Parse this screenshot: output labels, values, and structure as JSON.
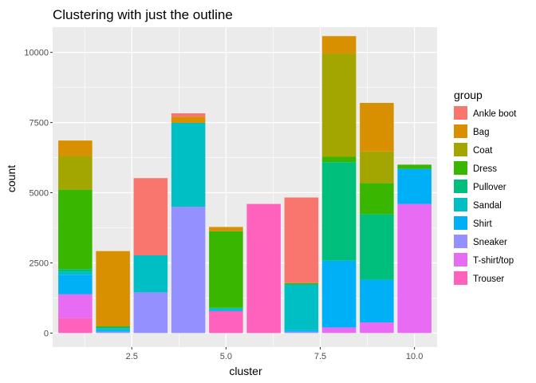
{
  "chart_data": {
    "type": "bar",
    "stacked": true,
    "title": "Clustering with just the outline",
    "xlabel": "cluster",
    "ylabel": "count",
    "xlim": [
      0.4,
      10.6
    ],
    "ylim": [
      -500,
      10900
    ],
    "x_ticks": [
      2.5,
      5.0,
      7.5,
      10.0
    ],
    "x_tick_labels": [
      "2.5",
      "5.0",
      "7.5",
      "10.0"
    ],
    "y_ticks": [
      0,
      2500,
      5000,
      7500,
      10000
    ],
    "y_tick_labels": [
      "0",
      "2500",
      "5000",
      "7500",
      "10000"
    ],
    "grid": true,
    "legend_position": "right",
    "legend_title": "group",
    "colors": {
      "Ankle boot": "#F8766D",
      "Bag": "#D89000",
      "Coat": "#A3A500",
      "Dress": "#39B600",
      "Pullover": "#00BF7D",
      "Sandal": "#00BFC4",
      "Shirt": "#00B0F6",
      "Sneaker": "#9590FF",
      "T-shirt/top": "#E76BF3",
      "Trouser": "#FF62BC"
    },
    "clusters": [
      1,
      2,
      3,
      4,
      5,
      6,
      7,
      8,
      9,
      10
    ],
    "series": [
      {
        "name": "Ankle boot",
        "values": [
          0,
          0,
          2750,
          120,
          0,
          0,
          3050,
          0,
          0,
          0
        ]
      },
      {
        "name": "Bag",
        "values": [
          550,
          2680,
          0,
          220,
          150,
          0,
          0,
          620,
          1730,
          0
        ]
      },
      {
        "name": "Coat",
        "values": [
          1200,
          0,
          0,
          0,
          0,
          0,
          0,
          3680,
          1130,
          0
        ]
      },
      {
        "name": "Dress",
        "values": [
          2830,
          30,
          0,
          0,
          2730,
          0,
          50,
          190,
          1110,
          150
        ]
      },
      {
        "name": "Pullover",
        "values": [
          100,
          30,
          0,
          0,
          30,
          0,
          0,
          3510,
          2330,
          0
        ]
      },
      {
        "name": "Sandal",
        "values": [
          100,
          80,
          1320,
          2990,
          40,
          0,
          1630,
          0,
          0,
          0
        ]
      },
      {
        "name": "Shirt",
        "values": [
          700,
          50,
          0,
          0,
          50,
          0,
          50,
          2380,
          1520,
          1250
        ]
      },
      {
        "name": "Sneaker",
        "values": [
          0,
          50,
          1450,
          4500,
          0,
          0,
          50,
          0,
          0,
          0
        ]
      },
      {
        "name": "T-shirt/top",
        "values": [
          850,
          0,
          0,
          0,
          0,
          0,
          0,
          200,
          380,
          4600
        ]
      },
      {
        "name": "Trouser",
        "values": [
          530,
          0,
          0,
          0,
          780,
          4600,
          0,
          0,
          0,
          0
        ]
      }
    ]
  }
}
